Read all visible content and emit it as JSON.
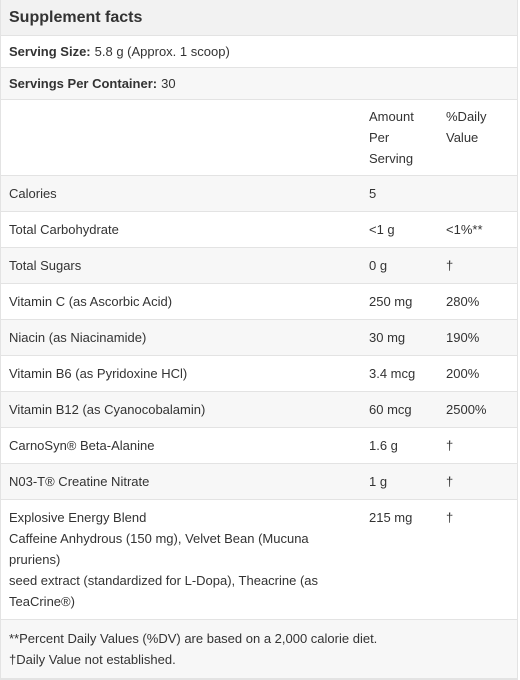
{
  "title": "Supplement facts",
  "serving_size": {
    "label": "Serving Size:",
    "value": "5.8 g (Approx. 1 scoop)"
  },
  "servings_per_container": {
    "label": "Servings Per Container:",
    "value": "30"
  },
  "header": {
    "amount": [
      "Amount",
      "Per",
      "Serving"
    ],
    "dv": [
      "%Daily",
      "Value"
    ]
  },
  "rows": [
    {
      "name": "Calories",
      "amount": "5",
      "dv": ""
    },
    {
      "name": "Total Carbohydrate",
      "amount": "<1 g",
      "dv": "<1%**"
    },
    {
      "name": "Total Sugars",
      "amount": "0 g",
      "dv": "†"
    },
    {
      "name": "Vitamin C (as Ascorbic Acid)",
      "amount": "250 mg",
      "dv": "280%"
    },
    {
      "name": "Niacin (as Niacinamide)",
      "amount": "30 mg",
      "dv": "190%"
    },
    {
      "name": "Vitamin B6 (as Pyridoxine HCl)",
      "amount": "3.4 mcg",
      "dv": "200%"
    },
    {
      "name": "Vitamin B12 (as Cyanocobalamin)",
      "amount": "60 mcg",
      "dv": "2500%"
    },
    {
      "name": "CarnoSyn® Beta-Alanine",
      "amount": "1.6 g",
      "dv": "†"
    },
    {
      "name": "N03-T® Creatine Nitrate",
      "amount": "1 g",
      "dv": "†"
    }
  ],
  "blend": {
    "name": "Explosive Energy Blend",
    "line2": "Caffeine Anhydrous (150 mg), Velvet Bean (Mucuna pruriens)",
    "line3": "seed extract (standardized for L-Dopa), Theacrine (as TeaCrine®)",
    "amount": "215 mg",
    "dv": "†"
  },
  "footnotes": [
    "**Percent Daily Values (%DV) are based on a 2,000 calorie diet.",
    "†Daily Value not established."
  ]
}
